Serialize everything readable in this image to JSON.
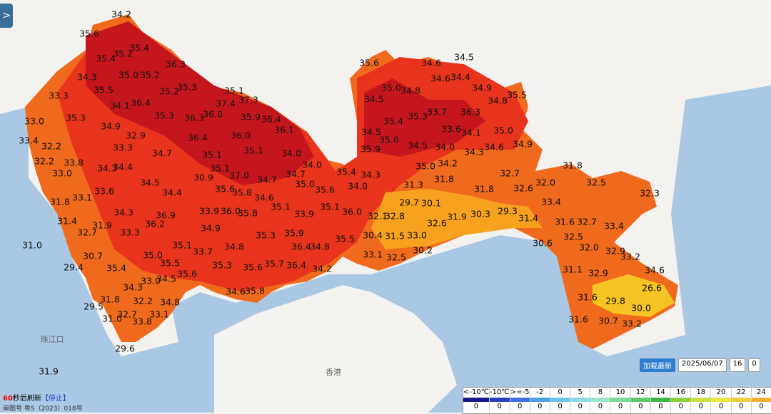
{
  "toggle_button": ">",
  "map": {
    "place_labels": [
      "珠江口",
      "香港"
    ],
    "temperature_labels": [
      "34.2",
      "35.6",
      "35.4",
      "35.2",
      "35.4",
      "36.3",
      "34.3",
      "35.0",
      "35.2",
      "35.5",
      "35.3",
      "35.2",
      "33.3",
      "34.1",
      "36.4",
      "37.4",
      "37.3",
      "35.1",
      "36.0",
      "35.3",
      "36.3",
      "35.9",
      "36.4",
      "35.3",
      "33.0",
      "34.9",
      "36.1",
      "32.9",
      "36.4",
      "36.0",
      "33.4",
      "32.2",
      "33.3",
      "34.7",
      "35.1",
      "35.1",
      "34.0",
      "32.2",
      "33.8",
      "34.3",
      "34.4",
      "35.1",
      "34.0",
      "33.0",
      "30.9",
      "37.0",
      "34.7",
      "34.7",
      "35.0",
      "34.5",
      "33.1",
      "33.6",
      "34.4",
      "35.6",
      "35.8",
      "34.6",
      "35.6",
      "31.8",
      "34.3",
      "33.9",
      "36.0",
      "35.8",
      "35.1",
      "35.1",
      "36.9",
      "33.9",
      "31.4",
      "31.9",
      "36.2",
      "34.9",
      "32.7",
      "33.3",
      "35.3",
      "35.9",
      "35.1",
      "33.7",
      "34.8",
      "36.4",
      "34.8",
      "31.0",
      "30.7",
      "35.0",
      "35.5",
      "35.3",
      "35.6",
      "35.7",
      "36.4",
      "34.2",
      "29.4",
      "35.4",
      "35.6",
      "33.0",
      "34.5",
      "34.3",
      "34.6",
      "35.8",
      "31.8",
      "32.2",
      "34.8",
      "29.5",
      "32.7",
      "33.1",
      "31.0",
      "33.8",
      "29.6",
      "35.6",
      "34.6",
      "34.5",
      "34.6",
      "34.4",
      "35.0",
      "34.8",
      "34.9",
      "35.5",
      "34.5",
      "34.8",
      "33.7",
      "36.3",
      "35.3",
      "35.4",
      "33.6",
      "34.1",
      "35.0",
      "34.5",
      "35.0",
      "34.5",
      "34.0",
      "34.6",
      "34.9",
      "35.9",
      "34.3",
      "34.2",
      "35.0",
      "32.7",
      "35.4",
      "34.3",
      "31.8",
      "31.8",
      "32.0",
      "32.5",
      "31.3",
      "34.0",
      "31.8",
      "32.6",
      "32.3",
      "33.4",
      "29.7",
      "30.1",
      "36.0",
      "32.1",
      "32.8",
      "31.9",
      "30.3",
      "29.3",
      "31.4",
      "31.6",
      "32.7",
      "33.4",
      "32.6",
      "30.4",
      "31.5",
      "33.0",
      "35.5",
      "32.5",
      "30.6",
      "30.2",
      "32.0",
      "33.1",
      "32.5",
      "32.9",
      "33.2",
      "31.1",
      "32.9",
      "34.6",
      "26.6",
      "31.6",
      "29.8",
      "30.0",
      "31.6",
      "30.7",
      "33.2",
      "31.9"
    ]
  },
  "refresh": {
    "seconds": "60",
    "text": "秒后刷新",
    "stop": "【停止】"
  },
  "approval": "审图号 粤S（2023）018号",
  "controls": {
    "load_latest": "加载最新",
    "date": "2025/06/07",
    "hour": "16",
    "minute": "0"
  },
  "legend": {
    "thresholds": [
      "<-10℃",
      "-10℃",
      ">=-5",
      "-2",
      "0",
      "5",
      "8",
      "10",
      "12",
      "14",
      "16",
      "18",
      "20",
      "22",
      "24"
    ],
    "counts": [
      "0",
      "0",
      "0",
      "0",
      "0",
      "0",
      "0",
      "0",
      "0",
      "0",
      "0",
      "0",
      "0",
      "0",
      "0"
    ]
  }
}
